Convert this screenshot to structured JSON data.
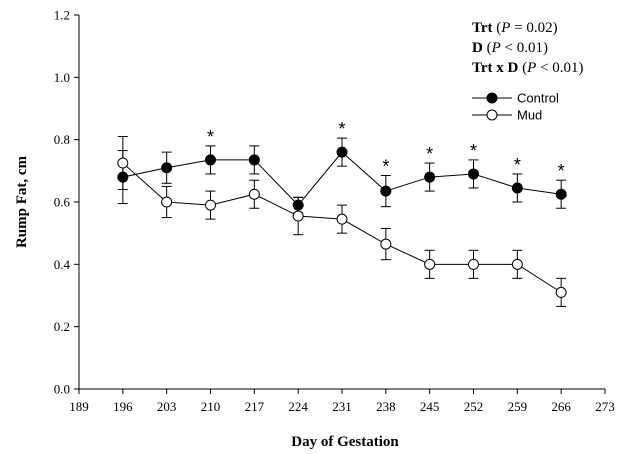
{
  "chart_data": {
    "type": "line",
    "xlabel": "Day of Gestation",
    "ylabel": "Rump Fat, cm",
    "xlim": [
      189,
      273
    ],
    "ylim": [
      0.0,
      1.2
    ],
    "x_ticks": [
      189,
      196,
      203,
      210,
      217,
      224,
      231,
      238,
      245,
      252,
      259,
      266,
      273
    ],
    "y_ticks": [
      "0.0",
      "0.2",
      "0.4",
      "0.6",
      "0.8",
      "1.0",
      "1.2"
    ],
    "grid": false,
    "legend_position": "top-right",
    "x": [
      196,
      203,
      210,
      217,
      224,
      231,
      238,
      245,
      252,
      259,
      266
    ],
    "series": [
      {
        "name": "Control",
        "marker": "filled-circle",
        "color": "#000000",
        "values": [
          0.68,
          0.71,
          0.735,
          0.735,
          0.59,
          0.76,
          0.635,
          0.68,
          0.69,
          0.645,
          0.625
        ],
        "error": [
          0.085,
          0.05,
          0.045,
          0.045,
          0.025,
          0.045,
          0.05,
          0.045,
          0.045,
          0.045,
          0.045
        ]
      },
      {
        "name": "Mud",
        "marker": "open-circle",
        "color": "#000000",
        "values": [
          0.725,
          0.6,
          0.59,
          0.625,
          0.555,
          0.545,
          0.465,
          0.4,
          0.4,
          0.4,
          0.31
        ],
        "error": [
          0.085,
          0.05,
          0.045,
          0.045,
          0.06,
          0.045,
          0.05,
          0.045,
          0.045,
          0.045,
          0.045
        ]
      }
    ],
    "annotations": {
      "significance_symbol": "*",
      "significant_x": [
        210,
        231,
        238,
        245,
        252,
        259,
        266
      ],
      "stats": [
        {
          "term": "Trt",
          "p_label": "P",
          "relation": "=",
          "value": "0.02"
        },
        {
          "term": "D",
          "p_label": "P",
          "relation": "<",
          "value": "0.01"
        },
        {
          "term": "Trt x D",
          "p_label": "P",
          "relation": "<",
          "value": "0.01"
        }
      ]
    }
  }
}
